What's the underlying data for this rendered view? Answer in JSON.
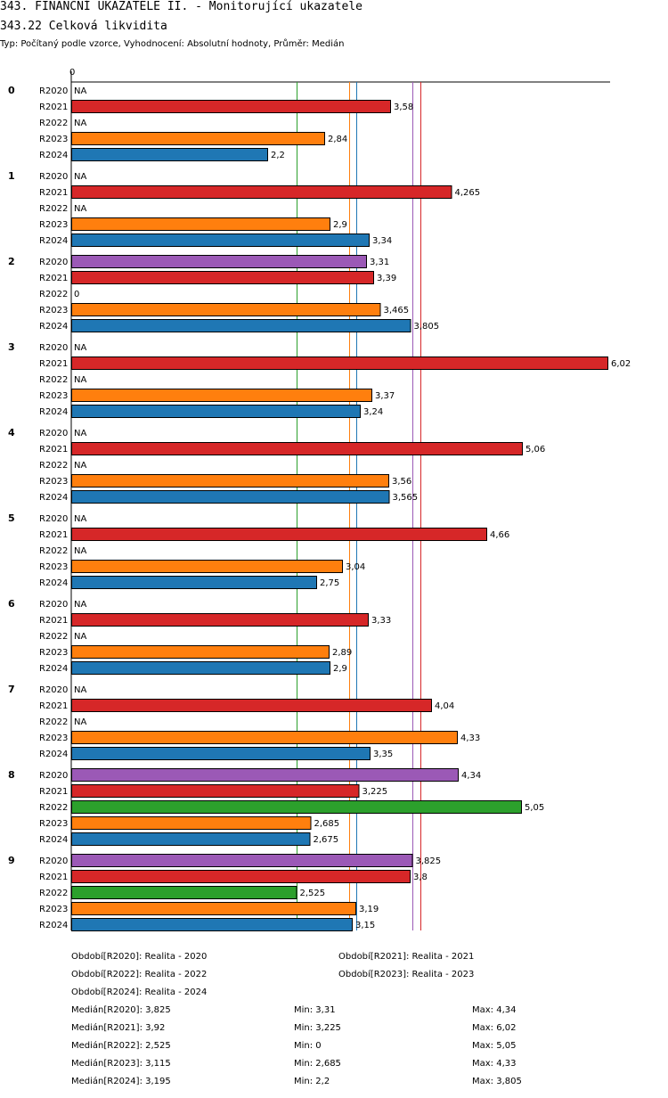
{
  "header": {
    "title": "343. FINANČNÍ UKAZATELE II. - Monitorující ukazatele",
    "subtitle": "343.22 Celková likvidita",
    "meta": "Typ: Počítaný podle vzorce, Vyhodnocení: Absolutní hodnoty, Průměr: Medián"
  },
  "colors": {
    "R2020": "#9b59b6",
    "R2021": "#d62728",
    "R2022": "#2ca02c",
    "R2023": "#ff7f0e",
    "R2024": "#1f77b4"
  },
  "chart_data": {
    "type": "bar",
    "orientation": "horizontal",
    "axis_zero_label": "0",
    "series_names": [
      "R2020",
      "R2021",
      "R2022",
      "R2023",
      "R2024"
    ],
    "groups": [
      {
        "label": "0",
        "values": [
          null,
          3.58,
          null,
          2.84,
          2.2
        ],
        "labels": [
          "NA",
          "3,58",
          "NA",
          "2,84",
          "2,2"
        ]
      },
      {
        "label": "1",
        "values": [
          null,
          4.265,
          null,
          2.9,
          3.34
        ],
        "labels": [
          "NA",
          "4,265",
          "NA",
          "2,9",
          "3,34"
        ]
      },
      {
        "label": "2",
        "values": [
          3.31,
          3.39,
          0,
          3.465,
          3.805
        ],
        "labels": [
          "3,31",
          "3,39",
          "0",
          "3,465",
          "3,805"
        ]
      },
      {
        "label": "3",
        "values": [
          null,
          6.02,
          null,
          3.37,
          3.24
        ],
        "labels": [
          "NA",
          "6,02",
          "NA",
          "3,37",
          "3,24"
        ]
      },
      {
        "label": "4",
        "values": [
          null,
          5.06,
          null,
          3.56,
          3.565
        ],
        "labels": [
          "NA",
          "5,06",
          "NA",
          "3,56",
          "3,565"
        ]
      },
      {
        "label": "5",
        "values": [
          null,
          4.66,
          null,
          3.04,
          2.75
        ],
        "labels": [
          "NA",
          "4,66",
          "NA",
          "3,04",
          "2,75"
        ]
      },
      {
        "label": "6",
        "values": [
          null,
          3.33,
          null,
          2.89,
          2.9
        ],
        "labels": [
          "NA",
          "3,33",
          "NA",
          "2,89",
          "2,9"
        ]
      },
      {
        "label": "7",
        "values": [
          null,
          4.04,
          null,
          4.33,
          3.35
        ],
        "labels": [
          "NA",
          "4,04",
          "NA",
          "4,33",
          "3,35"
        ]
      },
      {
        "label": "8",
        "values": [
          4.34,
          3.225,
          5.05,
          2.685,
          2.675
        ],
        "labels": [
          "4,34",
          "3,225",
          "5,05",
          "2,685",
          "2,675"
        ]
      },
      {
        "label": "9",
        "values": [
          3.825,
          3.8,
          2.525,
          3.19,
          3.15
        ],
        "labels": [
          "3,825",
          "3,8",
          "2,525",
          "3,19",
          "3,15"
        ]
      }
    ],
    "reference_lines": [
      {
        "series": "R2020",
        "value": 3.825
      },
      {
        "series": "R2021",
        "value": 3.92
      },
      {
        "series": "R2022",
        "value": 2.525
      },
      {
        "series": "R2023",
        "value": 3.115
      },
      {
        "series": "R2024",
        "value": 3.195
      }
    ],
    "xlim": [
      0,
      6.02
    ]
  },
  "legend": {
    "periods": [
      "Období[R2020]: Realita - 2020",
      "Období[R2021]: Realita - 2021",
      "Období[R2022]: Realita - 2022",
      "Období[R2023]: Realita - 2023",
      "Období[R2024]: Realita - 2024"
    ],
    "stats": [
      {
        "median": "Medián[R2020]: 3,825",
        "min": "Min: 3,31",
        "max": "Max: 4,34"
      },
      {
        "median": "Medián[R2021]: 3,92",
        "min": "Min: 3,225",
        "max": "Max: 6,02"
      },
      {
        "median": "Medián[R2022]: 2,525",
        "min": "Min: 0",
        "max": "Max: 5,05"
      },
      {
        "median": "Medián[R2023]: 3,115",
        "min": "Min: 2,685",
        "max": "Max: 4,33"
      },
      {
        "median": "Medián[R2024]: 3,195",
        "min": "Min: 2,2",
        "max": "Max: 3,805"
      }
    ]
  }
}
